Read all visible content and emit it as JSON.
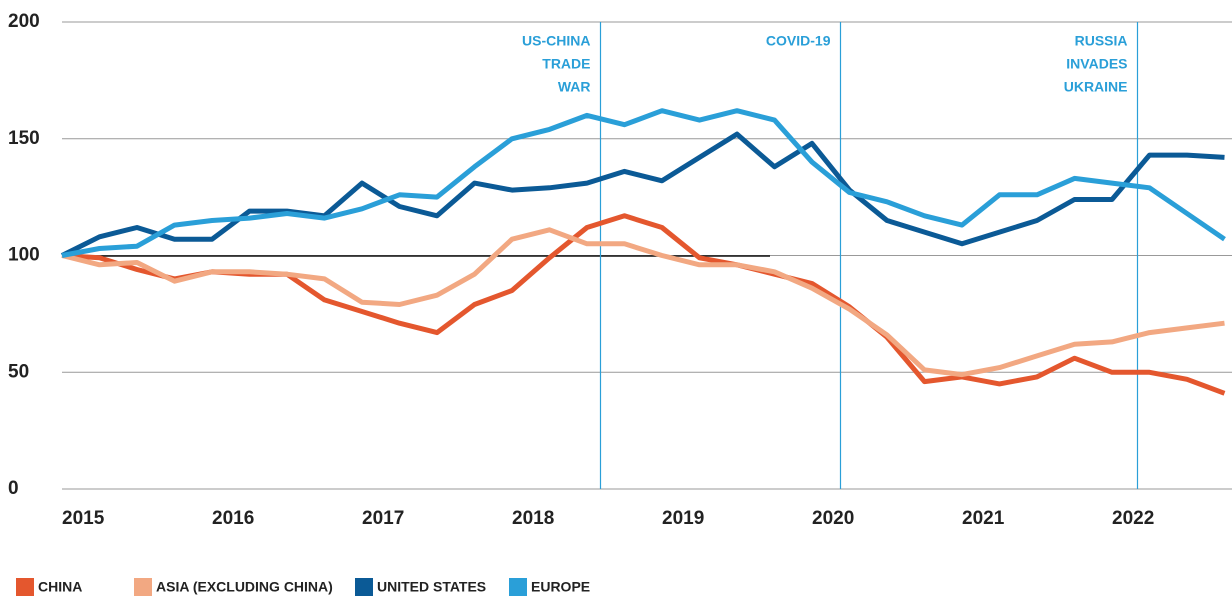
{
  "chart_data": {
    "type": "line",
    "x": [
      2015,
      2015.25,
      2015.5,
      2015.75,
      2016,
      2016.25,
      2016.5,
      2016.75,
      2017,
      2017.25,
      2017.5,
      2017.75,
      2018,
      2018.25,
      2018.5,
      2018.75,
      2019,
      2019.25,
      2019.5,
      2019.75,
      2020,
      2020.25,
      2020.5,
      2020.75,
      2021,
      2021.25,
      2021.5,
      2021.75,
      2022,
      2022.25,
      2022.5,
      2022.75
    ],
    "series": [
      {
        "name": "CHINA",
        "color": "#e4572e",
        "values": [
          100,
          99,
          94,
          90,
          93,
          92,
          92,
          81,
          76,
          71,
          67,
          79,
          85,
          99,
          112,
          117,
          112,
          99,
          96,
          92,
          88,
          78,
          65,
          46,
          48,
          45,
          48,
          56,
          50,
          50,
          47,
          41
        ]
      },
      {
        "name": "ASIA (EXCLUDING CHINA)",
        "color": "#f2a882",
        "values": [
          100,
          96,
          97,
          89,
          93,
          93,
          92,
          90,
          80,
          79,
          83,
          92,
          107,
          111,
          105,
          105,
          100,
          96,
          96,
          93,
          86,
          77,
          66,
          51,
          49,
          52,
          57,
          62,
          63,
          67,
          69,
          71
        ]
      },
      {
        "name": "UNITED STATES",
        "color": "#0b5a96",
        "values": [
          100,
          108,
          112,
          107,
          107,
          119,
          119,
          117,
          131,
          121,
          117,
          131,
          128,
          129,
          131,
          136,
          132,
          142,
          152,
          138,
          148,
          128,
          115,
          110,
          105,
          110,
          115,
          124,
          124,
          143,
          143,
          142
        ]
      },
      {
        "name": "EUROPE",
        "color": "#2a9fd8",
        "values": [
          100,
          103,
          104,
          113,
          115,
          116,
          118,
          116,
          120,
          126,
          125,
          138,
          150,
          154,
          160,
          156,
          162,
          158,
          162,
          158,
          140,
          127,
          123,
          117,
          113,
          126,
          126,
          133,
          131,
          129,
          118,
          107
        ]
      }
    ],
    "xlim": [
      2015,
      2022.8
    ],
    "xticks": [
      2015,
      2016,
      2017,
      2018,
      2019,
      2020,
      2021,
      2022
    ],
    "ylim": [
      0,
      200
    ],
    "yticks": [
      0,
      50,
      100,
      150,
      200
    ],
    "grid": true,
    "events": [
      {
        "x": 2018.59,
        "label": [
          "US-CHINA",
          "TRADE",
          "WAR"
        ]
      },
      {
        "x": 2020.19,
        "label": [
          "COVID-19"
        ]
      },
      {
        "x": 2022.17,
        "label": [
          "RUSSIA",
          "INVADES",
          "UKRAINE"
        ]
      }
    ]
  }
}
